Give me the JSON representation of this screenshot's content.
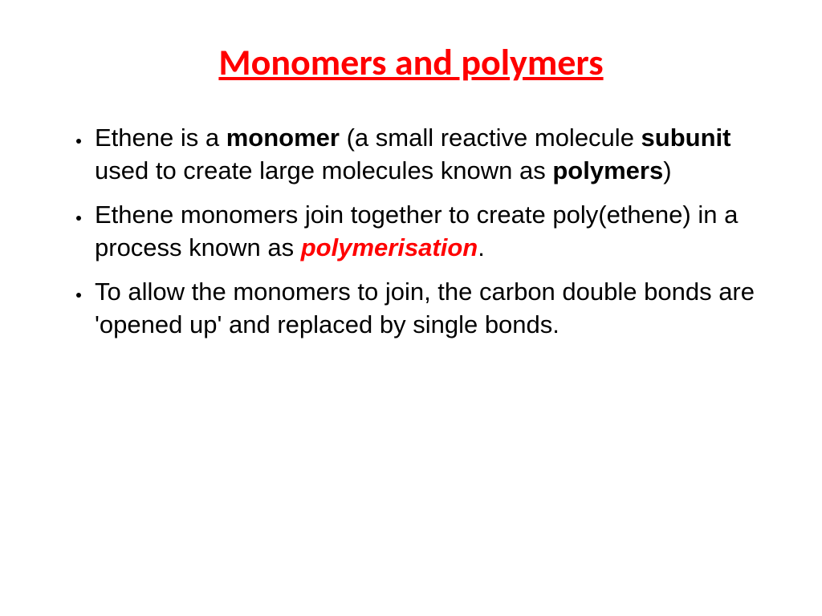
{
  "title": "Monomers and polymers",
  "colors": {
    "title": "#ff0000",
    "body_text": "#000000",
    "highlight": "#ff0000",
    "background": "#ffffff"
  },
  "typography": {
    "title_family": "Calibri",
    "body_family": "Comic Sans MS",
    "title_fontsize_pt": 40,
    "body_fontsize_pt": 28,
    "title_weight": "bold",
    "title_underline": true
  },
  "bullets": [
    {
      "runs": [
        {
          "t": "Ethene is a "
        },
        {
          "t": "monomer",
          "bold": true
        },
        {
          "t": " (a small reactive molecule "
        },
        {
          "t": "subunit",
          "bold": true
        },
        {
          "t": " used to create large molecules known as "
        },
        {
          "t": "polymers",
          "bold": true
        },
        {
          "t": ")"
        }
      ]
    },
    {
      "runs": [
        {
          "t": "Ethene monomers join together to create poly(ethene) in a process known as "
        },
        {
          "t": "polymerisation",
          "red_bold_italic": true
        },
        {
          "t": "."
        }
      ]
    },
    {
      "runs": [
        {
          "t": "To allow the monomers to join, the carbon double bonds are 'opened up' and replaced by single bonds."
        }
      ]
    }
  ]
}
